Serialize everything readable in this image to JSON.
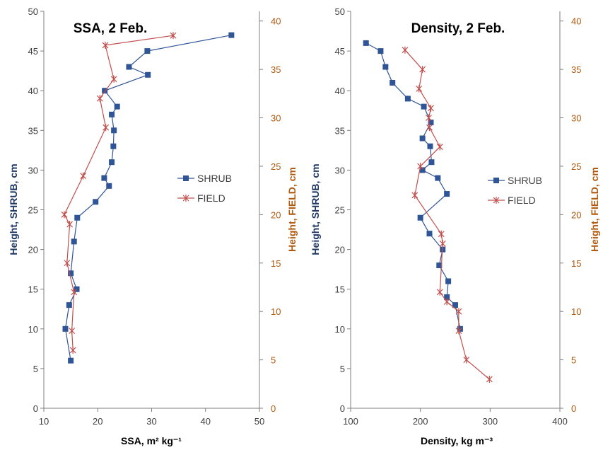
{
  "colors": {
    "shrub": "#2F5597",
    "field": "#C0504D",
    "left_axis_title": "#1F3864",
    "right_axis": "#B05A10",
    "axis_line": "#7F7F7F",
    "tick_text": "#404040"
  },
  "chart_data": [
    {
      "type": "line",
      "title": "SSA, 2 Feb.",
      "xlabel": "SSA, m² kg⁻¹",
      "ylabel_left": "Height, SHRUB, cm",
      "ylabel_right": "Height, FIELD, cm",
      "xlim": [
        10,
        50
      ],
      "xticks": [
        "10",
        "20",
        "30",
        "40",
        "50"
      ],
      "ylim_left": [
        0,
        50
      ],
      "yticks_left": [
        "0",
        "5",
        "10",
        "15",
        "20",
        "25",
        "30",
        "35",
        "40",
        "45",
        "50"
      ],
      "ylim_right": [
        0,
        41
      ],
      "yticks_right": [
        "0",
        "5",
        "10",
        "15",
        "20",
        "25",
        "30",
        "35",
        "40"
      ],
      "legend": [
        "SHRUB",
        "FIELD"
      ],
      "legend_position": "center-right",
      "series": [
        {
          "name": "SHRUB",
          "marker": "square",
          "axis": "left",
          "points": [
            [
              44.8,
              47
            ],
            [
              29.2,
              45
            ],
            [
              25.8,
              43
            ],
            [
              29.3,
              42
            ],
            [
              21.3,
              40
            ],
            [
              23.6,
              38
            ],
            [
              22.6,
              37
            ],
            [
              23.0,
              35
            ],
            [
              22.9,
              33
            ],
            [
              22.6,
              31
            ],
            [
              21.2,
              29
            ],
            [
              22.1,
              28
            ],
            [
              19.6,
              26
            ],
            [
              16.2,
              24
            ],
            [
              15.6,
              21
            ],
            [
              15.0,
              17
            ],
            [
              16.1,
              15
            ],
            [
              14.7,
              13
            ],
            [
              14.0,
              10
            ],
            [
              15.0,
              6
            ]
          ]
        },
        {
          "name": "FIELD",
          "marker": "x",
          "axis": "right",
          "points": [
            [
              34.0,
              38.5
            ],
            [
              21.4,
              37.5
            ],
            [
              23.0,
              34
            ],
            [
              20.4,
              32
            ],
            [
              21.5,
              29
            ],
            [
              17.3,
              24
            ],
            [
              13.8,
              20
            ],
            [
              14.8,
              19
            ],
            [
              14.3,
              15
            ],
            [
              15.6,
              12
            ],
            [
              15.2,
              8
            ],
            [
              15.4,
              6
            ]
          ]
        }
      ]
    },
    {
      "type": "line",
      "title": "Density, 2 Feb.",
      "xlabel": "Density, kg m⁻³",
      "ylabel_left": "Height, SHRUB, cm",
      "ylabel_right": "Height, FIELD, cm",
      "xlim": [
        100,
        400
      ],
      "xticks": [
        "100",
        "200",
        "300",
        "400"
      ],
      "ylim_left": [
        0,
        50
      ],
      "yticks_left": [
        "0",
        "5",
        "10",
        "15",
        "20",
        "25",
        "30",
        "35",
        "40",
        "45",
        "50"
      ],
      "ylim_right": [
        0,
        41
      ],
      "yticks_right": [
        "0",
        "5",
        "10",
        "15",
        "20",
        "25",
        "30",
        "35",
        "40"
      ],
      "legend": [
        "SHRUB",
        "FIELD"
      ],
      "legend_position": "center-right",
      "series": [
        {
          "name": "SHRUB",
          "marker": "square",
          "axis": "left",
          "points": [
            [
              122,
              46
            ],
            [
              143,
              45
            ],
            [
              150,
              43
            ],
            [
              160,
              41
            ],
            [
              182,
              39
            ],
            [
              205,
              38
            ],
            [
              215,
              36
            ],
            [
              203,
              34
            ],
            [
              214,
              33
            ],
            [
              216,
              31
            ],
            [
              203,
              30
            ],
            [
              225,
              29
            ],
            [
              238,
              27
            ],
            [
              200,
              24
            ],
            [
              213,
              22
            ],
            [
              232,
              20
            ],
            [
              227,
              18
            ],
            [
              240,
              16
            ],
            [
              238,
              14
            ],
            [
              250,
              13
            ],
            [
              257,
              10
            ]
          ]
        },
        {
          "name": "FIELD",
          "marker": "x",
          "axis": "right",
          "points": [
            [
              178,
              37
            ],
            [
              203,
              35
            ],
            [
              198,
              33
            ],
            [
              215,
              31
            ],
            [
              212,
              30
            ],
            [
              213,
              29
            ],
            [
              228,
              27
            ],
            [
              200,
              25
            ],
            [
              192,
              22
            ],
            [
              230,
              18
            ],
            [
              232,
              17
            ],
            [
              228,
              12
            ],
            [
              238,
              11
            ],
            [
              255,
              10
            ],
            [
              255,
              8
            ],
            [
              266,
              5
            ],
            [
              299,
              3
            ]
          ]
        }
      ]
    }
  ]
}
